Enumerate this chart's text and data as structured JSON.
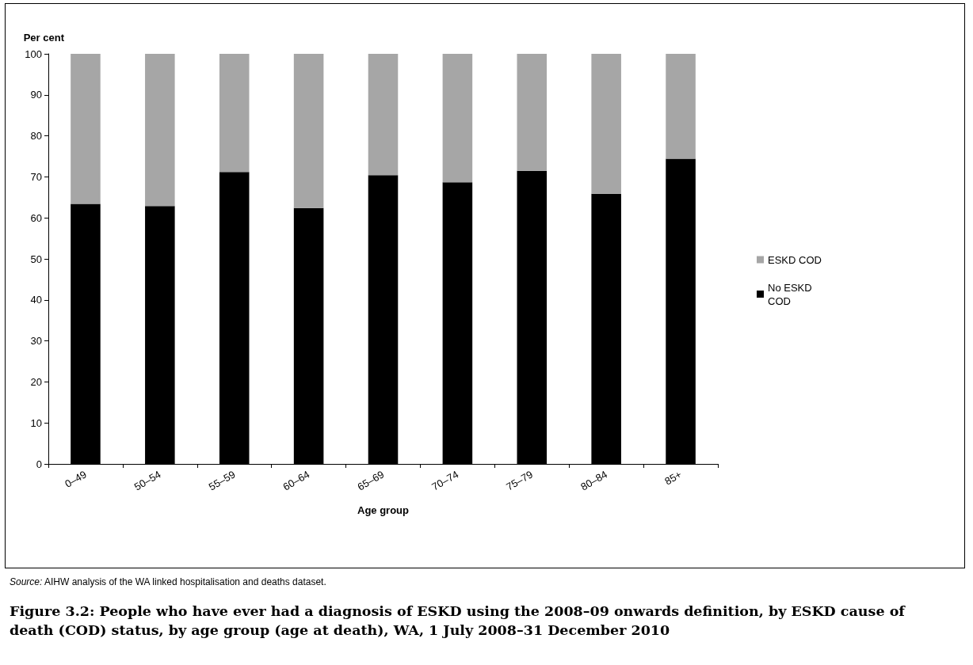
{
  "chart_data": {
    "type": "bar",
    "stacked": true,
    "title": "Figure 3.2: People who have ever had a diagnosis of ESKD using the 2008–09 onwards definition, by ESKD cause of death (COD) status, by age group (age at death), WA, 1 July 2008–31 December 2010",
    "annotations": [
      "Source: AIHW analysis of the WA linked hospitalisation and deaths dataset."
    ],
    "xlabel": "Age group",
    "ylabel": "Per cent",
    "categories": [
      "0–49",
      "50–54",
      "55–59",
      "60–64",
      "65–69",
      "70–74",
      "75–79",
      "80–84",
      "85+"
    ],
    "series": [
      {
        "name": "No ESKD COD",
        "color": "#000000",
        "values": [
          63.4,
          62.9,
          71.2,
          62.4,
          70.4,
          68.7,
          71.5,
          65.9,
          74.4
        ]
      },
      {
        "name": "ESKD COD",
        "color": "#a6a6a6",
        "values": [
          36.6,
          37.1,
          28.8,
          37.6,
          29.6,
          31.3,
          28.5,
          34.1,
          25.6
        ]
      }
    ],
    "ylim": [
      0,
      100
    ],
    "yticks": [
      0,
      10,
      20,
      30,
      40,
      50,
      60,
      70,
      80,
      90,
      100
    ],
    "grid": false,
    "legend": "right"
  }
}
